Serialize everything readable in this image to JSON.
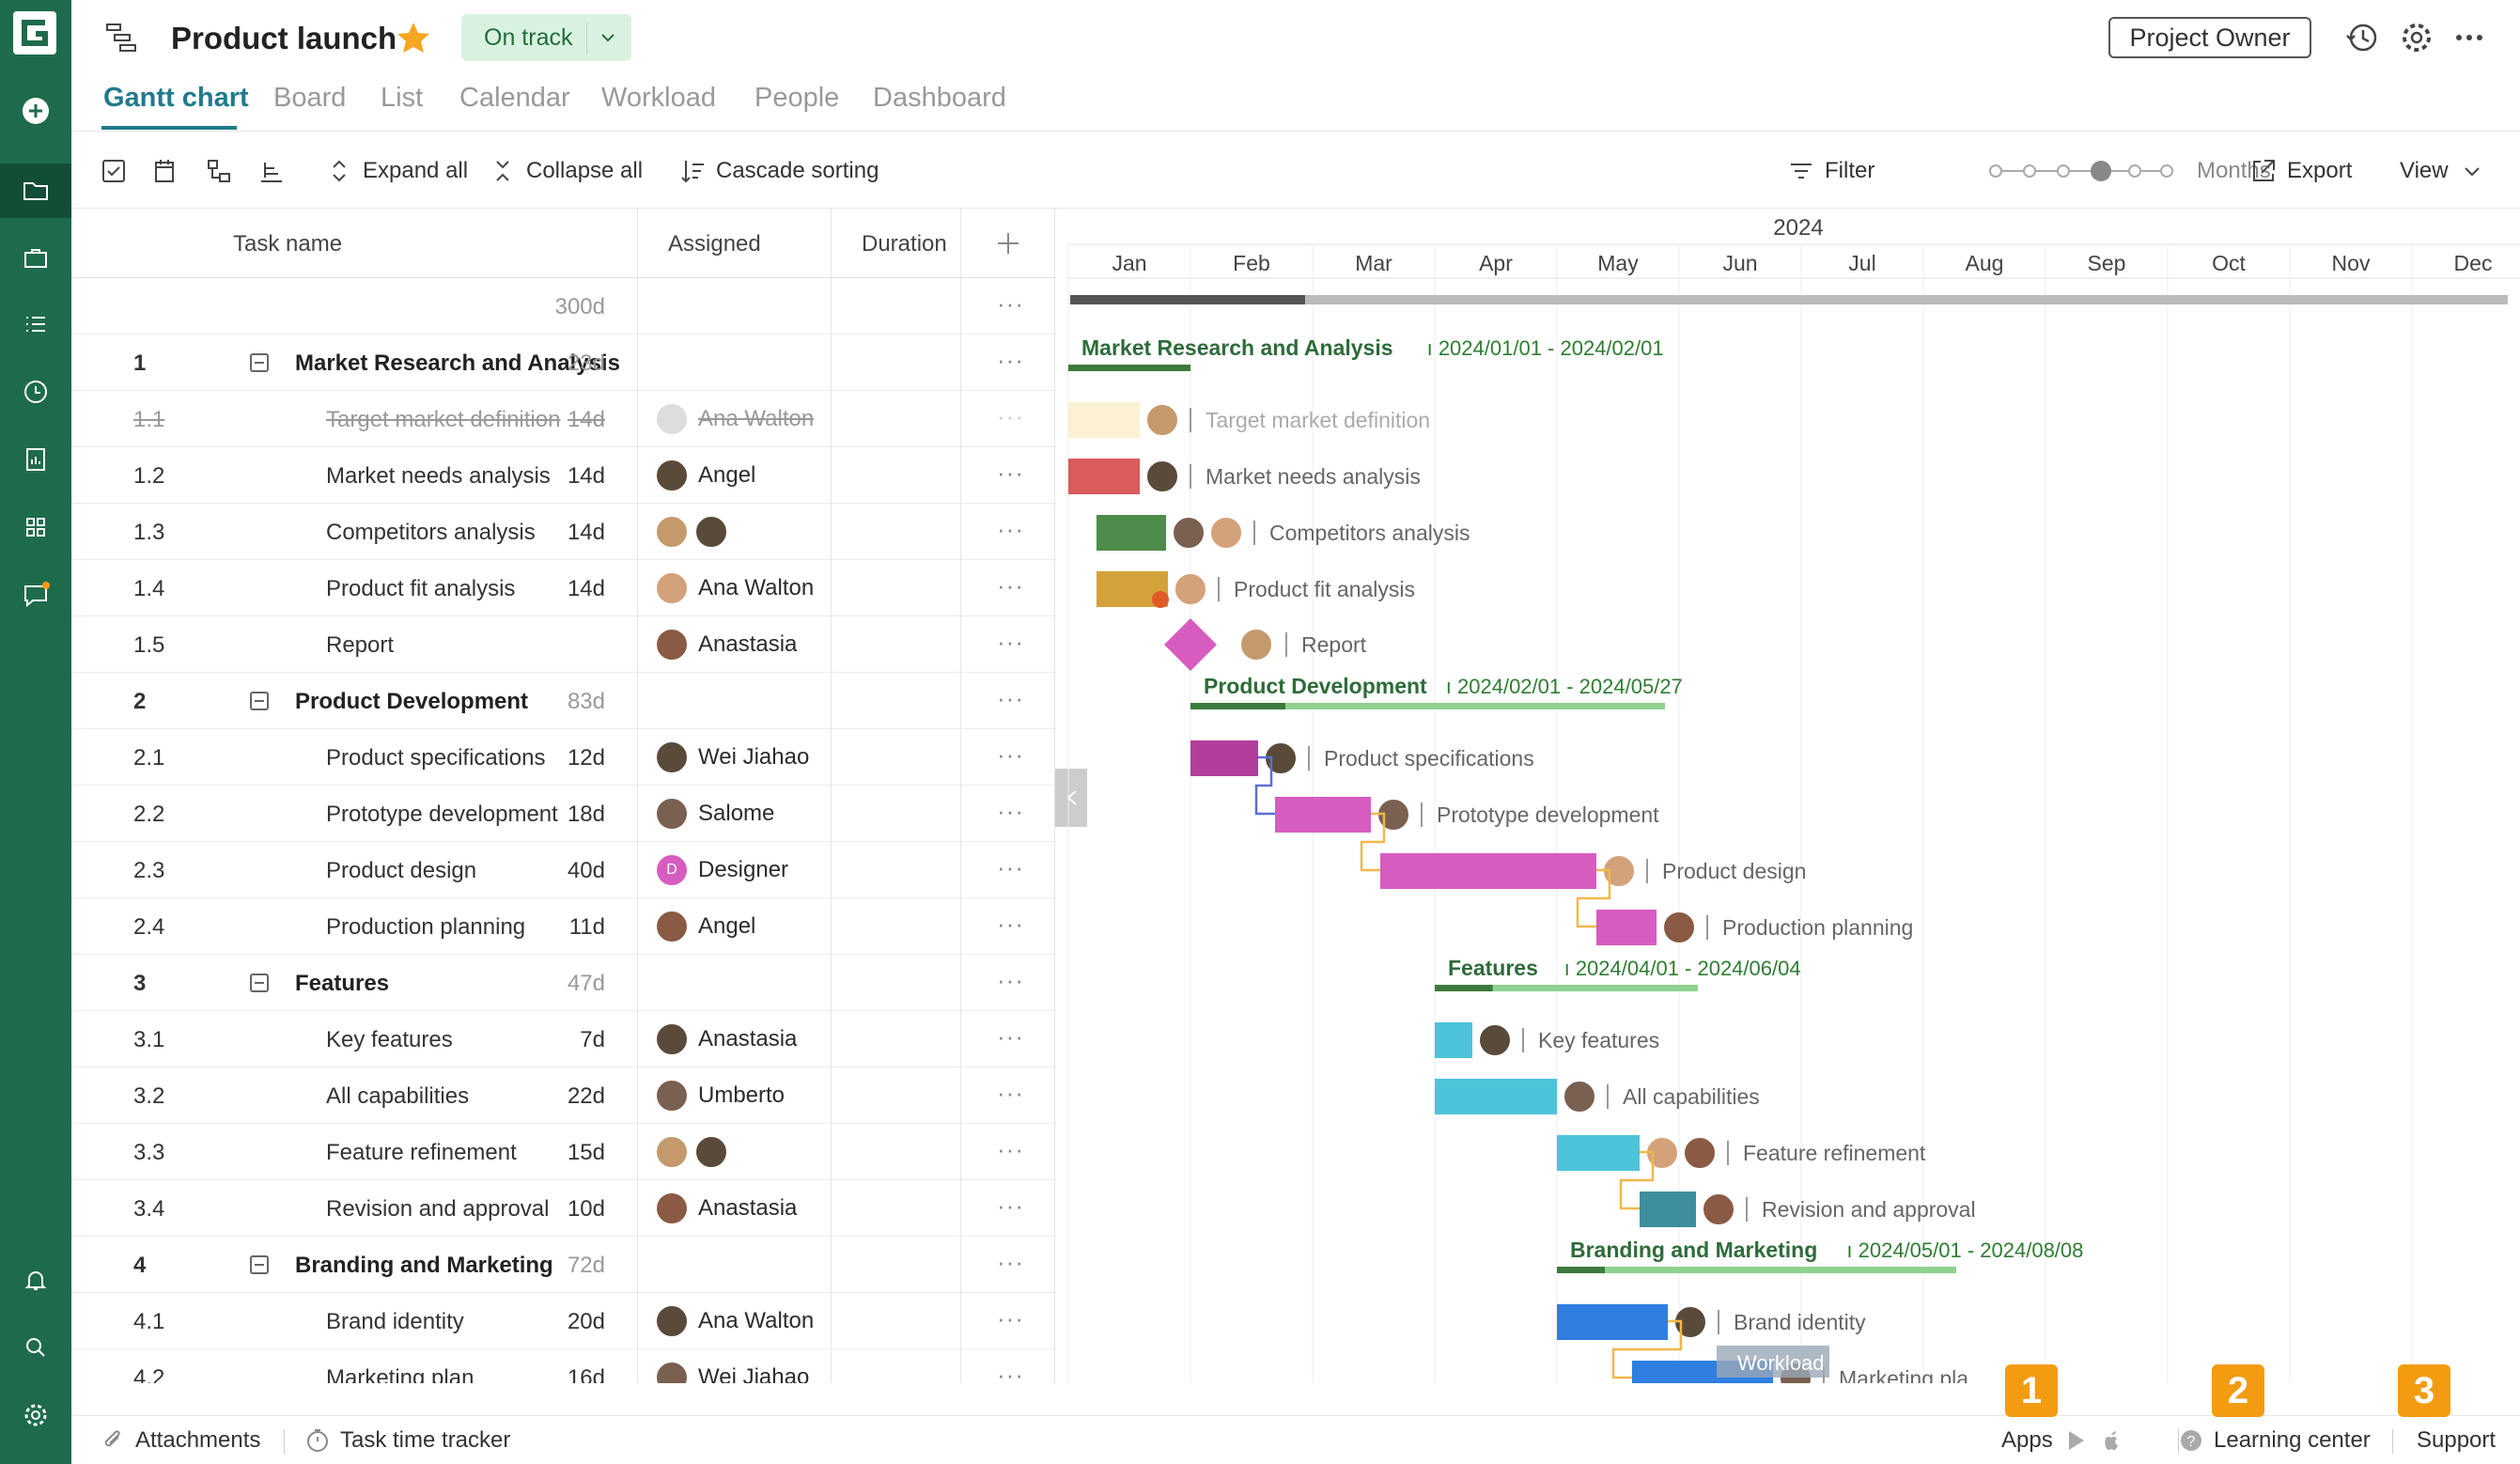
{
  "project": {
    "title": "Product launch",
    "status": "On track",
    "owner_button": "Project Owner"
  },
  "tabs": [
    "Gantt chart",
    "Board",
    "List",
    "Calendar",
    "Workload",
    "People",
    "Dashboard"
  ],
  "toolbar": {
    "expand_all": "Expand all",
    "collapse_all": "Collapse all",
    "cascade": "Cascade sorting",
    "filter": "Filter",
    "zoom": "Months",
    "export": "Export",
    "view": "View"
  },
  "grid": {
    "col_task": "Task name",
    "col_assigned": "Assigned",
    "col_duration": "Duration",
    "total": "300d"
  },
  "rows": [
    {
      "num": "1",
      "name": "Market Research and Analysis",
      "dur": "23d",
      "group": true
    },
    {
      "num": "1.1",
      "name": "Target market definition",
      "assigned": "Ana Walton",
      "dur": "14d",
      "done": true
    },
    {
      "num": "1.2",
      "name": "Market needs analysis",
      "assigned": "Angel",
      "dur": "14d"
    },
    {
      "num": "1.3",
      "name": "Competitors analysis",
      "assigned": "",
      "dur": "14d"
    },
    {
      "num": "1.4",
      "name": "Product fit analysis",
      "assigned": "Ana Walton",
      "dur": "14d"
    },
    {
      "num": "1.5",
      "name": "Report",
      "assigned": "Anastasia",
      "dur": ""
    },
    {
      "num": "2",
      "name": "Product Development",
      "dur": "83d",
      "group": true
    },
    {
      "num": "2.1",
      "name": "Product specifications",
      "assigned": "Wei Jiahao",
      "dur": "12d"
    },
    {
      "num": "2.2",
      "name": "Prototype development",
      "assigned": "Salome",
      "dur": "18d"
    },
    {
      "num": "2.3",
      "name": "Product design",
      "assigned": "Designer",
      "dur": "40d"
    },
    {
      "num": "2.4",
      "name": "Production planning",
      "assigned": "Angel",
      "dur": "11d"
    },
    {
      "num": "3",
      "name": "Features",
      "dur": "47d",
      "group": true
    },
    {
      "num": "3.1",
      "name": "Key features",
      "assigned": "Anastasia",
      "dur": "7d"
    },
    {
      "num": "3.2",
      "name": "All capabilities",
      "assigned": "Umberto",
      "dur": "22d"
    },
    {
      "num": "3.3",
      "name": "Feature refinement",
      "assigned": "",
      "dur": "15d"
    },
    {
      "num": "3.4",
      "name": "Revision and approval",
      "assigned": "Anastasia",
      "dur": "10d"
    },
    {
      "num": "4",
      "name": "Branding and Marketing",
      "dur": "72d",
      "group": true
    },
    {
      "num": "4.1",
      "name": "Brand identity",
      "assigned": "Ana Walton",
      "dur": "20d"
    },
    {
      "num": "4.2",
      "name": "Marketing plan",
      "assigned": "Wei Jiahao",
      "dur": "16d"
    }
  ],
  "timeline": {
    "year": "2024",
    "months": [
      "Jan",
      "Feb",
      "Mar",
      "Apr",
      "May",
      "Jun",
      "Jul",
      "Aug",
      "Sep",
      "Oct",
      "Nov",
      "Dec"
    ]
  },
  "groups": [
    {
      "name": "Market Research and Analysis",
      "range": "2024/01/01 - 2024/02/01"
    },
    {
      "name": "Product Development",
      "range": "2024/02/01 - 2024/05/27"
    },
    {
      "name": "Features",
      "range": "2024/04/01 - 2024/06/04"
    },
    {
      "name": "Branding and Marketing",
      "range": "2024/05/01 - 2024/08/08"
    }
  ],
  "bar_labels": [
    "Target market definition",
    "Market needs analysis",
    "Competitors analysis",
    "Product fit analysis",
    "Report",
    "Product specifications",
    "Prototype development",
    "Product design",
    "Production planning",
    "Key features",
    "All capabilities",
    "Feature refinement",
    "Revision and approval",
    "Brand identity",
    "Marketing pla"
  ],
  "workload_label": "Workload",
  "designer_initial": "D",
  "footer": {
    "attachments": "Attachments",
    "time_tracker": "Task time tracker",
    "apps": "Apps",
    "learning": "Learning center",
    "support": "Support"
  },
  "badges": [
    "1",
    "2",
    "3"
  ],
  "colors": {
    "brand": "#1e6b4c",
    "accent": "#1f7a8c",
    "group": "#2e7d32"
  }
}
